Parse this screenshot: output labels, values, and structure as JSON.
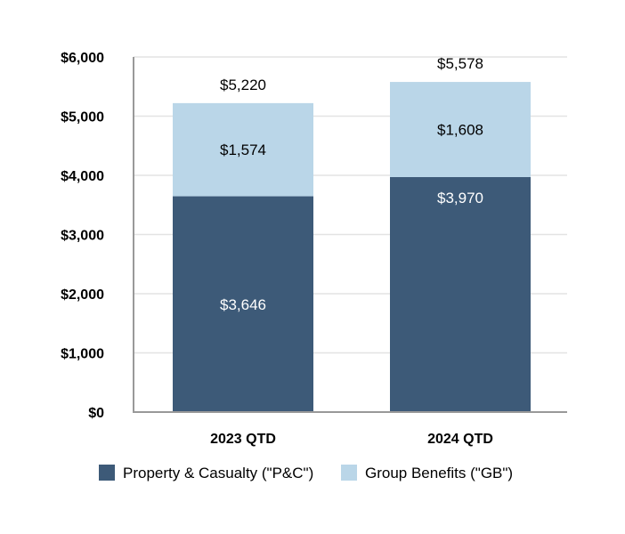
{
  "chart_data": {
    "type": "bar",
    "stacked": true,
    "title": "",
    "xlabel": "",
    "ylabel": "",
    "categories": [
      "2023 QTD",
      "2024 QTD"
    ],
    "series": [
      {
        "name": "Property & Casualty (\"P&C\")",
        "values": [
          3646,
          3970
        ],
        "labels": [
          "$3,646",
          "$3,970"
        ],
        "color": "#3d5a78",
        "label_color": "#ffffff"
      },
      {
        "name": "Group Benefits (\"GB\")",
        "values": [
          1574,
          1608
        ],
        "labels": [
          "$1,574",
          "$1,608"
        ],
        "color": "#bad6e8",
        "label_color": "#000000"
      }
    ],
    "totals": [
      5220,
      5578
    ],
    "total_labels": [
      "$5,220",
      "$5,578"
    ],
    "ylim": [
      0,
      6000
    ],
    "yticks": [
      0,
      1000,
      2000,
      3000,
      4000,
      5000,
      6000
    ],
    "ytick_labels": [
      "$0",
      "$1,000",
      "$2,000",
      "$3,000",
      "$4,000",
      "$5,000",
      "$6,000"
    ],
    "grid": true,
    "legend_position": "bottom"
  },
  "colors": {
    "grid": "#e3e3e3",
    "axis": "#999999"
  }
}
